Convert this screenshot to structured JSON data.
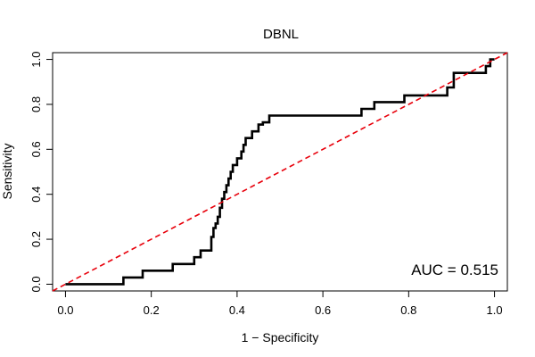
{
  "chart_data": {
    "type": "line",
    "title": "DBNL",
    "xlabel": "1 − Specificity",
    "ylabel": "Sensitivity",
    "xlim": [
      -0.03,
      1.03
    ],
    "ylim": [
      -0.03,
      1.03
    ],
    "x_ticks": [
      0.0,
      0.2,
      0.4,
      0.6,
      0.8,
      1.0
    ],
    "y_ticks": [
      0.0,
      0.2,
      0.4,
      0.6,
      0.8,
      1.0
    ],
    "x_tick_labels": [
      "0.0",
      "0.2",
      "0.4",
      "0.6",
      "0.8",
      "1.0"
    ],
    "y_tick_labels": [
      "0.0",
      "0.2",
      "0.4",
      "0.6",
      "0.8",
      "1.0"
    ],
    "annotation": "AUC = 0.515",
    "series": [
      {
        "name": "ROC curve",
        "color": "#000000",
        "style": "step",
        "x": [
          0.0,
          0.135,
          0.135,
          0.18,
          0.18,
          0.25,
          0.25,
          0.3,
          0.3,
          0.315,
          0.315,
          0.34,
          0.34,
          0.345,
          0.345,
          0.35,
          0.35,
          0.355,
          0.355,
          0.36,
          0.36,
          0.365,
          0.365,
          0.37,
          0.37,
          0.375,
          0.375,
          0.38,
          0.38,
          0.385,
          0.385,
          0.39,
          0.39,
          0.4,
          0.4,
          0.41,
          0.41,
          0.415,
          0.415,
          0.42,
          0.42,
          0.435,
          0.435,
          0.45,
          0.45,
          0.46,
          0.46,
          0.475,
          0.475,
          0.69,
          0.69,
          0.72,
          0.72,
          0.79,
          0.79,
          0.89,
          0.89,
          0.905,
          0.905,
          0.98,
          0.98,
          0.99,
          0.99,
          1.0
        ],
        "y": [
          0.0,
          0.0,
          0.03,
          0.03,
          0.06,
          0.06,
          0.09,
          0.09,
          0.12,
          0.12,
          0.15,
          0.15,
          0.21,
          0.21,
          0.25,
          0.25,
          0.27,
          0.27,
          0.3,
          0.3,
          0.34,
          0.34,
          0.38,
          0.38,
          0.41,
          0.41,
          0.44,
          0.44,
          0.47,
          0.47,
          0.5,
          0.5,
          0.53,
          0.53,
          0.56,
          0.56,
          0.59,
          0.59,
          0.62,
          0.62,
          0.65,
          0.65,
          0.68,
          0.68,
          0.71,
          0.71,
          0.72,
          0.72,
          0.75,
          0.75,
          0.78,
          0.78,
          0.81,
          0.81,
          0.84,
          0.84,
          0.875,
          0.875,
          0.94,
          0.94,
          0.97,
          0.97,
          1.0,
          1.0
        ]
      },
      {
        "name": "Reference diagonal",
        "color": "#e8000b",
        "style": "dashed",
        "x": [
          -0.03,
          1.03
        ],
        "y": [
          -0.03,
          1.03
        ]
      }
    ]
  }
}
